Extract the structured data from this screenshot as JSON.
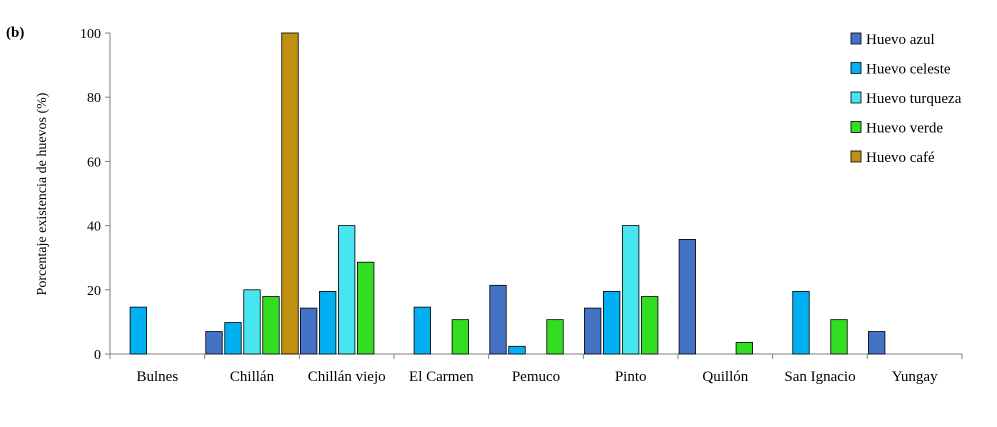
{
  "panel_label": "(b)",
  "colors": {
    "Huevo azul": "#4472c4",
    "Huevo celeste": "#00b0f0",
    "Huevo turqueza": "#47e5f0",
    "Huevo verde": "#33dd22",
    "Huevo café": "#c09010"
  },
  "chart_data": {
    "type": "bar",
    "ylabel": "Porcentaje existencia de huevos (%)",
    "xlabel": "",
    "ylim": [
      0,
      100
    ],
    "yticks": [
      0,
      20,
      40,
      60,
      80,
      100
    ],
    "grid": false,
    "legend_position": "top-right",
    "categories": [
      "Bulnes",
      "Chillán",
      "Chillán viejo",
      "El Carmen",
      "Pemuco",
      "Pinto",
      "Quillón",
      "San Ignacio",
      "Yungay"
    ],
    "series": [
      {
        "name": "Huevo azul",
        "values": [
          0,
          7,
          14.3,
          0,
          21.4,
          14.3,
          35.7,
          0,
          7
        ]
      },
      {
        "name": "Huevo celeste",
        "values": [
          14.6,
          9.8,
          19.5,
          14.6,
          2.4,
          19.5,
          0,
          19.5,
          0
        ]
      },
      {
        "name": "Huevo turqueza",
        "values": [
          0,
          20,
          40,
          0,
          0,
          40,
          0,
          0,
          0
        ]
      },
      {
        "name": "Huevo verde",
        "values": [
          0,
          17.9,
          28.6,
          10.7,
          10.7,
          17.9,
          3.6,
          10.7,
          0
        ]
      },
      {
        "name": "Huevo café",
        "values": [
          0,
          100,
          0,
          0,
          0,
          0,
          0,
          0,
          0
        ]
      }
    ]
  }
}
